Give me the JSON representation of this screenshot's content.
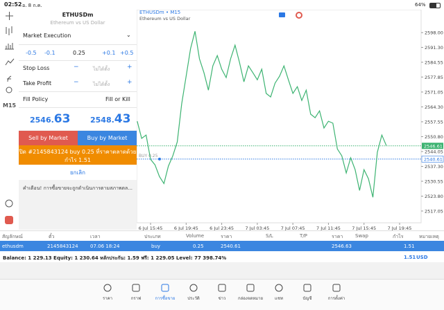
{
  "status_bar": {
    "time": "02:52",
    "date": "อ. 8 ก.ค.",
    "battery": "64%"
  },
  "toolbar": {
    "timeframe": "M15"
  },
  "order_panel": {
    "symbol": "ETHUSDm",
    "description": "Ethereum vs US Dollar",
    "execution": "Market Execution",
    "volume_steps": [
      "-0.5",
      "-0.1",
      "+0.1",
      "+0.5"
    ],
    "volume": "0.25",
    "stop_loss": {
      "label": "Stop Loss",
      "value": "ไม่ได้ตั้ง"
    },
    "take_profit": {
      "label": "Take Profit",
      "value": "ไม่ได้ตั้ง"
    },
    "fill_policy": {
      "label": "Fill Policy",
      "value": "Fill or Kill"
    },
    "bid": {
      "head": "2546.",
      "tail": "63"
    },
    "ask": {
      "head": "2548.",
      "tail": "43"
    },
    "sell_button": "Sell by Market",
    "buy_button": "Buy by Market",
    "close_order": [
      "ปิด #2145843124 buy 0.25 ที่ราคาตลาดด้วย",
      "กำไร 1.51"
    ],
    "cancel": "ยกเลิก",
    "warning": "คำเตือน! การซื้อขายจะถูกดำเนินการตามสภาพตล..."
  },
  "chart": {
    "type": "line",
    "title": "ETHUSDm • M15",
    "subtitle": "Ethereum vs US Dollar",
    "color": "#3cb371",
    "categories": [
      null,
      null,
      null,
      "6 Jul 15:45",
      null,
      null,
      null,
      null,
      null,
      null,
      null,
      "6 Jul 19:45",
      null,
      null,
      null,
      null,
      null,
      null,
      null,
      "6 Jul 23:45",
      null,
      null,
      null,
      null,
      null,
      null,
      null,
      "7 Jul 03:45",
      null,
      null,
      null,
      null,
      null,
      null,
      null,
      "7 Jul 07:45",
      null,
      null,
      null,
      null,
      null,
      null,
      null,
      "7 Jul 11:45",
      null,
      null,
      null,
      null,
      null,
      null,
      null,
      "7 Jul 15:45",
      null,
      null,
      null,
      null,
      null,
      null,
      null,
      "7 Jul 19:45"
    ],
    "values": [
      2557.8,
      2550.0,
      2551.5,
      2540.5,
      2538.0,
      2532.7,
      2529.5,
      2537.4,
      2542.1,
      2548.4,
      2565.7,
      2578.2,
      2590.8,
      2598.6,
      2586.1,
      2579.8,
      2571.9,
      2582.9,
      2587.6,
      2581.4,
      2577.6,
      2586.1,
      2592.3,
      2584.5,
      2575.7,
      2582.9,
      2579.8,
      2576.6,
      2581.4,
      2570.4,
      2568.8,
      2575.1,
      2578.2,
      2582.9,
      2576.6,
      2570.4,
      2573.5,
      2567.2,
      2571.9,
      2561.0,
      2559.4,
      2562.5,
      2554.7,
      2557.8,
      2556.9,
      2545.2,
      2542.1,
      2534.3,
      2541.2,
      2535.8,
      2526.4,
      2535.8,
      2531.7,
      2523.3,
      2543.7,
      2551.5,
      2546.8,
      null,
      null,
      null
    ],
    "ylim": [
      2511.7,
      2608.4
    ],
    "yticks": [
      {
        "value": 2598.0,
        "label": "2598.00"
      },
      {
        "value": 2591.3,
        "label": "2591.30"
      },
      {
        "value": 2584.55,
        "label": "2584.55"
      },
      {
        "value": 2577.85,
        "label": "2577.85"
      },
      {
        "value": 2571.05,
        "label": "2571.05"
      },
      {
        "value": 2564.3,
        "label": "2564.30"
      },
      {
        "value": 2557.55,
        "label": "2557.55"
      },
      {
        "value": 2550.8,
        "label": "2550.80"
      },
      {
        "value": 2544.05,
        "label": "2544.05"
      },
      {
        "value": 2537.3,
        "label": "2537.30"
      },
      {
        "value": 2530.55,
        "label": "2530.55"
      },
      {
        "value": 2523.8,
        "label": "2523.80"
      },
      {
        "value": 2517.05,
        "label": "2517.05"
      }
    ],
    "bid_line": {
      "value": 2546.61,
      "label": "2546.61",
      "color": "#3cb371"
    },
    "position_line": {
      "value": 2540.61,
      "label": "2540.61",
      "tag": "BUY 0.25",
      "color": "#2b78e4"
    }
  },
  "positions_table": {
    "columns": [
      "สัญลักษณ์",
      "ตั๋ว",
      "เวลา",
      "ประเภท",
      "Volume",
      "ราคา",
      "S/L",
      "T/P",
      "ราคา",
      "Swap",
      "กำไร",
      "หมายเหตุ"
    ],
    "rows": [
      {
        "symbol": "ethusdm",
        "ticket": "2145843124",
        "time": "07.06 18:24",
        "type": "buy",
        "volume": "0.25",
        "open_price": "2540.61",
        "price": "2546.63",
        "profit": "1.51"
      }
    ],
    "summary": {
      "text": "Balance: 1 229.13 Equity: 1 230.64 หลักประกัน: 1.59 ฟรี: 1 229.05 Level: 77 398.74%",
      "profit": "1.51",
      "currency": "USD"
    }
  },
  "nav": {
    "items": [
      "ราคา",
      "กราฟ",
      "การซื้อขาย",
      "ประวัติ",
      "ข่าว",
      "กล่องจดหมาย",
      "แชท",
      "บัญชี",
      "การตั้งค่า"
    ],
    "active": 2
  }
}
